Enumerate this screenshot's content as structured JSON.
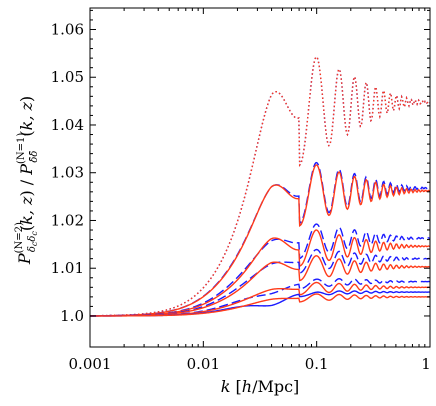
{
  "chart_data": {
    "type": "line",
    "x_scale": "log",
    "xlim": [
      0.001,
      1
    ],
    "ylim": [
      0.9935,
      1.0645
    ],
    "xlabel": "k [h/Mpc]",
    "ylabel": "P^(N=2)_{δc δc}(k,z) / P^(N=1)_{δ̄ δ̄}(k,z)",
    "x_ticks": [
      {
        "value": 0.001,
        "label": "0.001"
      },
      {
        "value": 0.01,
        "label": "0.01"
      },
      {
        "value": 0.1,
        "label": "0.1"
      },
      {
        "value": 1,
        "label": "1"
      }
    ],
    "y_ticks": [
      {
        "value": 1.0,
        "label": "1.0"
      },
      {
        "value": 1.01,
        "label": "1.01"
      },
      {
        "value": 1.02,
        "label": "1.02"
      },
      {
        "value": 1.03,
        "label": "1.03"
      },
      {
        "value": 1.04,
        "label": "1.04"
      },
      {
        "value": 1.05,
        "label": "1.05"
      },
      {
        "value": 1.06,
        "label": "1.06"
      }
    ],
    "colors": {
      "blue": "#1a1aff",
      "red": "#ff3b1a"
    },
    "series": [
      {
        "color": "blue",
        "style": "dotted",
        "amp": 0.06,
        "tail": 1.0448,
        "k_rise": 0.024
      },
      {
        "color": "red",
        "style": "dotted",
        "amp": 0.06,
        "tail": 1.0448,
        "k_rise": 0.024
      },
      {
        "color": "blue",
        "style": "dashed",
        "amp": 0.034,
        "tail": 1.0268,
        "k_rise": 0.022
      },
      {
        "color": "red",
        "style": "solid",
        "amp": 0.034,
        "tail": 1.0262,
        "k_rise": 0.022
      },
      {
        "color": "blue",
        "style": "dashed",
        "amp": 0.0195,
        "tail": 1.0163,
        "k_rise": 0.021
      },
      {
        "color": "red",
        "style": "solid",
        "amp": 0.02,
        "tail": 1.0146,
        "k_rise": 0.021
      },
      {
        "color": "blue",
        "style": "dashed",
        "amp": 0.0135,
        "tail": 1.012,
        "k_rise": 0.021
      },
      {
        "color": "red",
        "style": "solid",
        "amp": 0.0138,
        "tail": 1.0103,
        "k_rise": 0.021
      },
      {
        "color": "blue",
        "style": "dashed",
        "amp": 0.006,
        "tail": 1.0072,
        "k_rise": 0.022
      },
      {
        "color": "red",
        "style": "solid",
        "amp": 0.007,
        "tail": 1.006,
        "k_rise": 0.022
      },
      {
        "color": "blue",
        "style": "solid",
        "amp": 0.003,
        "tail": 1.005,
        "k_rise": 0.023
      },
      {
        "color": "red",
        "style": "solid",
        "amp": 0.0045,
        "tail": 1.004,
        "k_rise": 0.023
      }
    ]
  }
}
